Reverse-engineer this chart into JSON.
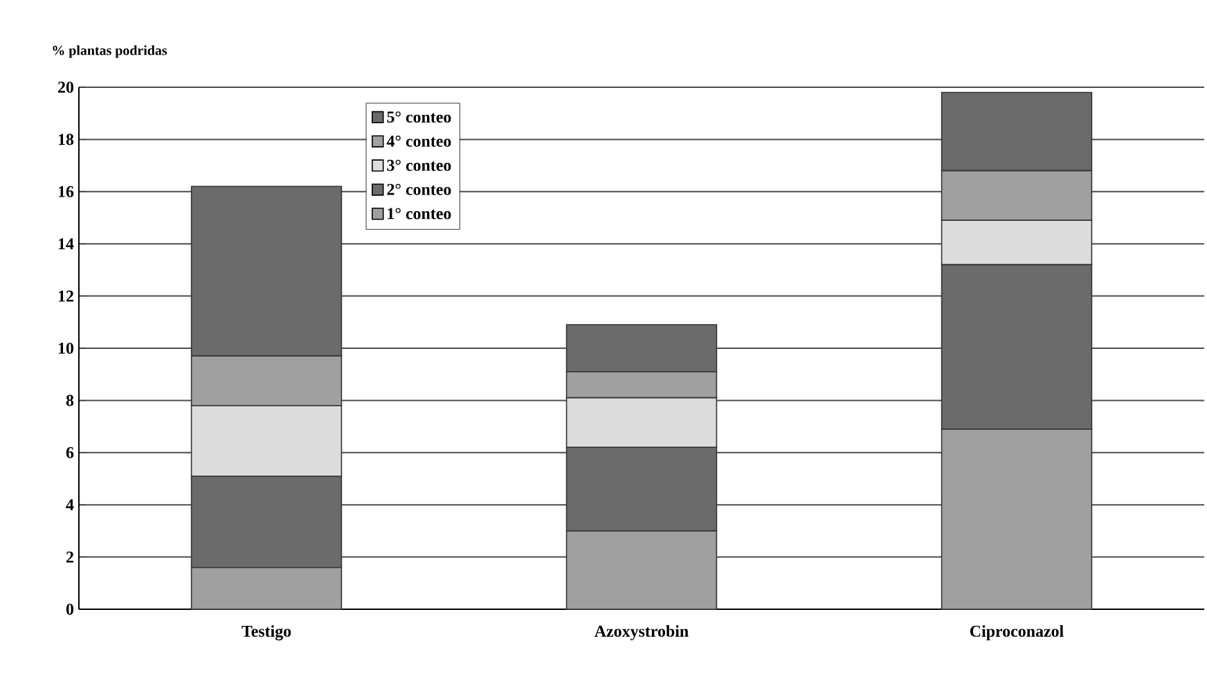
{
  "chart_data": {
    "type": "bar",
    "stacked": true,
    "ylabel": "% plantas podridas",
    "categories": [
      "Testigo",
      "Azoxystrobin",
      "Ciproconazol"
    ],
    "series": [
      {
        "name": "1° conteo",
        "color": "#a0a0a0",
        "values": [
          1.6,
          3.0,
          6.9
        ]
      },
      {
        "name": "2° conteo",
        "color": "#6b6b6b",
        "values": [
          3.5,
          3.2,
          6.3
        ]
      },
      {
        "name": "3° conteo",
        "color": "#dcdcdc",
        "values": [
          2.7,
          1.9,
          1.7
        ]
      },
      {
        "name": "4° conteo",
        "color": "#a0a0a0",
        "values": [
          1.9,
          1.0,
          1.9
        ]
      },
      {
        "name": "5° conteo",
        "color": "#6b6b6b",
        "values": [
          6.5,
          1.8,
          3.0
        ]
      }
    ],
    "ylim": [
      0,
      20
    ],
    "yticks": [
      0,
      2,
      4,
      6,
      8,
      10,
      12,
      14,
      16,
      18,
      20
    ],
    "grid": "y",
    "legend": "top left"
  }
}
